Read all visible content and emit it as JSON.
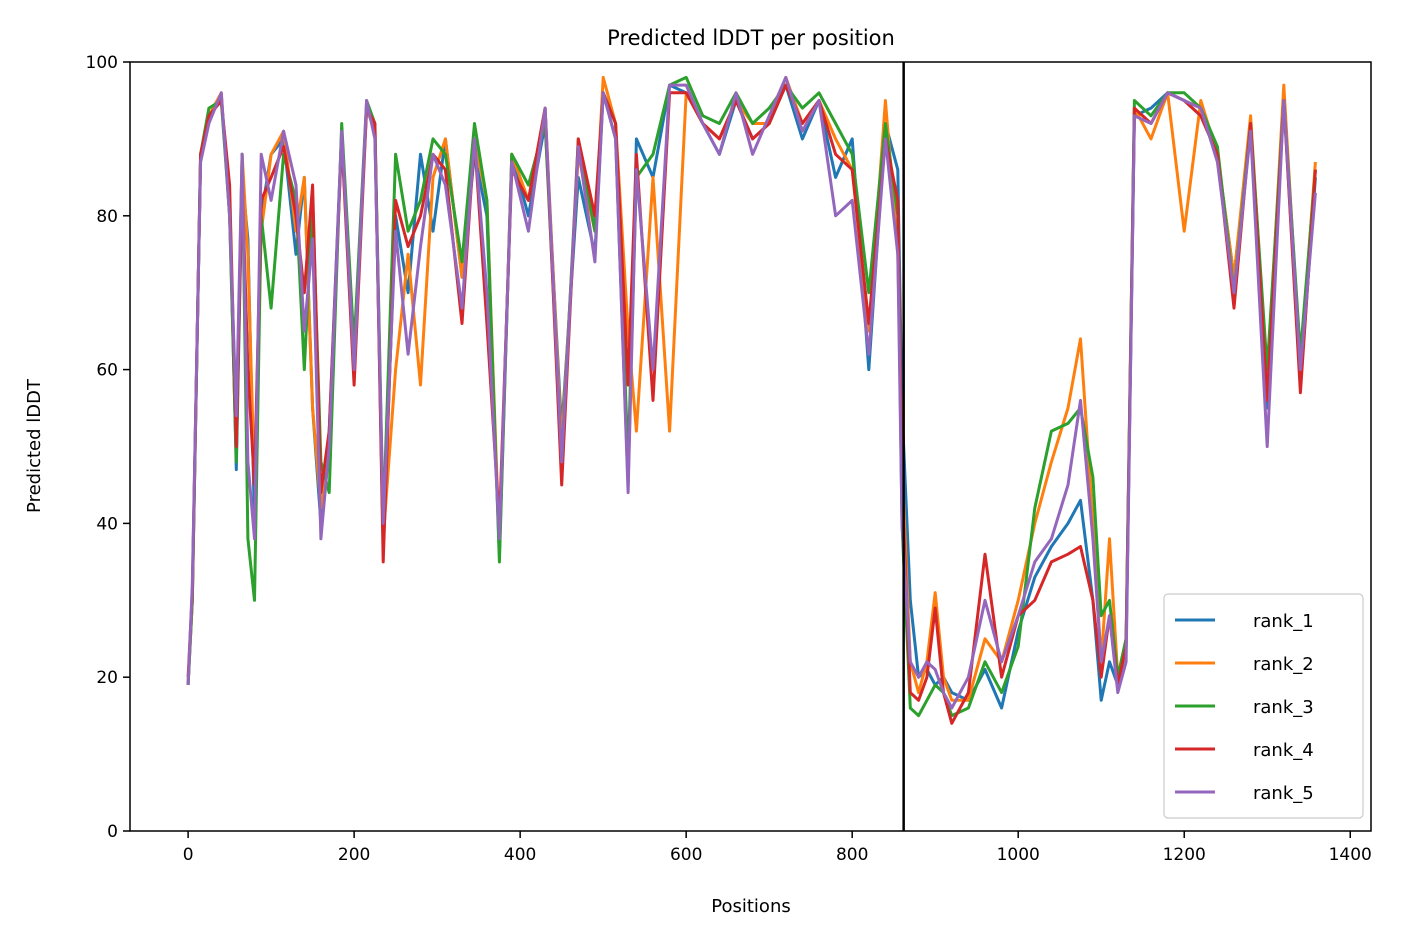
{
  "chart_data": {
    "type": "line",
    "title": "Predicted lDDT per position",
    "xlabel": "Positions",
    "ylabel": "Predicted lDDT",
    "xlim": [
      -70,
      1425
    ],
    "ylim": [
      0,
      100
    ],
    "xticks": [
      0,
      200,
      400,
      600,
      800,
      1000,
      1200,
      1400
    ],
    "yticks": [
      0,
      20,
      40,
      60,
      80,
      100
    ],
    "grid": false,
    "legend_position": "lower-right",
    "vertical_line": {
      "x": 862,
      "color": "#000000"
    },
    "series": [
      {
        "name": "rank_1",
        "color": "#1f77b4",
        "x": [
          0,
          5,
          15,
          25,
          40,
          50,
          58,
          65,
          72,
          80,
          88,
          100,
          115,
          130,
          140,
          150,
          160,
          170,
          185,
          200,
          215,
          225,
          235,
          250,
          265,
          280,
          295,
          310,
          330,
          345,
          360,
          375,
          390,
          410,
          430,
          450,
          470,
          490,
          500,
          515,
          530,
          540,
          560,
          580,
          600,
          620,
          640,
          660,
          680,
          700,
          720,
          740,
          760,
          780,
          800,
          820,
          840,
          855,
          860,
          870,
          880,
          890,
          900,
          910,
          920,
          940,
          960,
          980,
          1000,
          1020,
          1040,
          1060,
          1075,
          1090,
          1100,
          1110,
          1120,
          1130,
          1140,
          1160,
          1180,
          1200,
          1220,
          1240,
          1260,
          1280,
          1300,
          1320,
          1340,
          1358
        ],
        "y": [
          19,
          30,
          88,
          93,
          95,
          82,
          47,
          85,
          77,
          40,
          80,
          88,
          90,
          75,
          85,
          55,
          40,
          52,
          91,
          62,
          94,
          91,
          37,
          80,
          70,
          88,
          78,
          90,
          72,
          88,
          80,
          36,
          88,
          80,
          92,
          52,
          85,
          75,
          96,
          90,
          45,
          90,
          85,
          97,
          96,
          92,
          88,
          95,
          90,
          92,
          97,
          90,
          95,
          85,
          90,
          60,
          92,
          86,
          55,
          30,
          20,
          21,
          19,
          20,
          18,
          17,
          21,
          16,
          26,
          33,
          37,
          40,
          43,
          30,
          17,
          22,
          19,
          24,
          93,
          94,
          96,
          95,
          93,
          88,
          72,
          92,
          55,
          95,
          58,
          85
        ]
      },
      {
        "name": "rank_2",
        "color": "#ff7f0e",
        "x": [
          0,
          5,
          15,
          25,
          40,
          50,
          58,
          65,
          72,
          80,
          88,
          100,
          115,
          130,
          140,
          150,
          160,
          170,
          185,
          200,
          215,
          225,
          235,
          250,
          265,
          280,
          295,
          310,
          330,
          345,
          360,
          375,
          390,
          410,
          430,
          450,
          470,
          490,
          500,
          515,
          530,
          540,
          560,
          580,
          600,
          620,
          640,
          660,
          680,
          700,
          720,
          740,
          760,
          780,
          800,
          820,
          840,
          855,
          860,
          870,
          880,
          890,
          900,
          910,
          920,
          940,
          960,
          980,
          1000,
          1020,
          1040,
          1060,
          1075,
          1090,
          1100,
          1110,
          1120,
          1130,
          1140,
          1160,
          1180,
          1200,
          1220,
          1240,
          1260,
          1280,
          1300,
          1320,
          1340,
          1358
        ],
        "y": [
          19,
          30,
          88,
          93,
          96,
          80,
          50,
          88,
          75,
          45,
          78,
          88,
          91,
          78,
          85,
          55,
          42,
          50,
          90,
          62,
          94,
          91,
          38,
          60,
          75,
          58,
          85,
          90,
          72,
          90,
          82,
          37,
          88,
          82,
          94,
          50,
          88,
          78,
          98,
          92,
          65,
          52,
          85,
          52,
          96,
          92,
          90,
          95,
          92,
          92,
          98,
          92,
          95,
          90,
          86,
          65,
          95,
          75,
          48,
          22,
          18,
          22,
          31,
          20,
          17,
          17,
          25,
          22,
          30,
          40,
          48,
          55,
          64,
          40,
          22,
          38,
          20,
          25,
          94,
          90,
          96,
          78,
          95,
          88,
          72,
          93,
          58,
          97,
          60,
          87
        ]
      },
      {
        "name": "rank_3",
        "color": "#2ca02c",
        "x": [
          0,
          5,
          15,
          25,
          40,
          50,
          58,
          65,
          72,
          80,
          88,
          100,
          115,
          130,
          140,
          150,
          160,
          170,
          185,
          200,
          215,
          225,
          235,
          250,
          265,
          280,
          295,
          310,
          330,
          345,
          360,
          375,
          390,
          410,
          430,
          450,
          470,
          490,
          500,
          515,
          530,
          540,
          560,
          580,
          600,
          620,
          640,
          660,
          680,
          700,
          720,
          740,
          760,
          780,
          800,
          820,
          840,
          855,
          860,
          870,
          880,
          890,
          900,
          910,
          920,
          940,
          960,
          980,
          1000,
          1020,
          1040,
          1060,
          1075,
          1090,
          1100,
          1110,
          1120,
          1130,
          1140,
          1160,
          1180,
          1200,
          1220,
          1240,
          1260,
          1280,
          1300,
          1320,
          1340,
          1358
        ],
        "y": [
          19,
          30,
          88,
          94,
          95,
          80,
          48,
          88,
          38,
          30,
          80,
          68,
          88,
          82,
          60,
          82,
          48,
          44,
          92,
          63,
          95,
          92,
          40,
          88,
          78,
          82,
          90,
          88,
          74,
          92,
          82,
          35,
          88,
          84,
          92,
          48,
          90,
          78,
          96,
          92,
          48,
          85,
          88,
          97,
          98,
          93,
          92,
          96,
          92,
          94,
          97,
          94,
          96,
          92,
          88,
          70,
          92,
          80,
          40,
          16,
          15,
          17,
          19,
          18,
          15,
          16,
          22,
          18,
          24,
          42,
          52,
          53,
          55,
          46,
          28,
          30,
          20,
          25,
          95,
          93,
          96,
          96,
          94,
          89,
          70,
          92,
          60,
          95,
          62,
          86
        ]
      },
      {
        "name": "rank_4",
        "color": "#d62728",
        "x": [
          0,
          5,
          15,
          25,
          40,
          50,
          58,
          65,
          72,
          80,
          88,
          100,
          115,
          130,
          140,
          150,
          160,
          170,
          185,
          200,
          215,
          225,
          235,
          250,
          265,
          280,
          295,
          310,
          330,
          345,
          360,
          375,
          390,
          410,
          430,
          450,
          470,
          490,
          500,
          515,
          530,
          540,
          560,
          580,
          600,
          620,
          640,
          660,
          680,
          700,
          720,
          740,
          760,
          780,
          800,
          820,
          840,
          855,
          860,
          870,
          880,
          890,
          900,
          910,
          920,
          940,
          960,
          980,
          1000,
          1020,
          1040,
          1060,
          1075,
          1090,
          1100,
          1110,
          1120,
          1130,
          1140,
          1160,
          1180,
          1200,
          1220,
          1240,
          1260,
          1280,
          1300,
          1320,
          1340,
          1358
        ],
        "y": [
          20,
          31,
          88,
          93,
          95,
          84,
          50,
          85,
          60,
          45,
          82,
          85,
          89,
          80,
          70,
          84,
          44,
          52,
          90,
          58,
          94,
          92,
          35,
          82,
          76,
          80,
          88,
          86,
          66,
          90,
          66,
          40,
          86,
          82,
          94,
          45,
          90,
          80,
          96,
          92,
          58,
          88,
          56,
          96,
          96,
          92,
          90,
          95,
          90,
          92,
          97,
          92,
          95,
          88,
          86,
          66,
          90,
          82,
          45,
          18,
          17,
          20,
          29,
          18,
          14,
          18,
          36,
          20,
          28,
          30,
          35,
          36,
          37,
          30,
          20,
          28,
          19,
          24,
          94,
          92,
          96,
          95,
          93,
          88,
          68,
          92,
          56,
          95,
          57,
          86
        ]
      },
      {
        "name": "rank_5",
        "color": "#9467bd",
        "x": [
          0,
          5,
          15,
          25,
          40,
          50,
          58,
          65,
          72,
          80,
          88,
          100,
          115,
          130,
          140,
          150,
          160,
          170,
          185,
          200,
          215,
          225,
          235,
          250,
          265,
          280,
          295,
          310,
          330,
          345,
          360,
          375,
          390,
          410,
          430,
          450,
          470,
          490,
          500,
          515,
          530,
          540,
          560,
          580,
          600,
          620,
          640,
          660,
          680,
          700,
          720,
          740,
          760,
          780,
          800,
          820,
          840,
          855,
          860,
          870,
          880,
          890,
          900,
          910,
          920,
          940,
          960,
          980,
          1000,
          1020,
          1040,
          1060,
          1075,
          1090,
          1100,
          1110,
          1120,
          1130,
          1140,
          1160,
          1180,
          1200,
          1220,
          1240,
          1260,
          1280,
          1300,
          1320,
          1340,
          1358
        ],
        "y": [
          19,
          32,
          87,
          92,
          96,
          80,
          54,
          88,
          48,
          38,
          88,
          82,
          91,
          84,
          65,
          77,
          38,
          50,
          91,
          60,
          95,
          90,
          40,
          78,
          62,
          76,
          88,
          84,
          68,
          90,
          70,
          38,
          87,
          78,
          94,
          48,
          89,
          74,
          96,
          90,
          44,
          86,
          60,
          97,
          97,
          92,
          88,
          96,
          88,
          93,
          98,
          91,
          95,
          80,
          82,
          62,
          90,
          75,
          40,
          22,
          20,
          22,
          21,
          18,
          16,
          20,
          30,
          22,
          28,
          35,
          38,
          45,
          56,
          38,
          22,
          28,
          18,
          22,
          93,
          92,
          96,
          95,
          94,
          87,
          70,
          91,
          50,
          95,
          60,
          83
        ]
      }
    ]
  }
}
